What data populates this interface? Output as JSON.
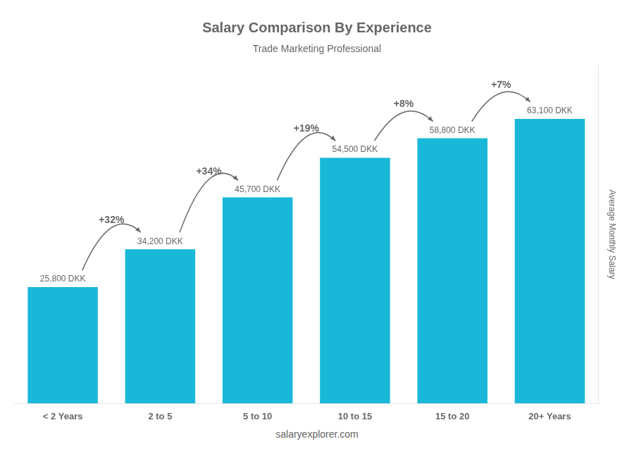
{
  "chart_data": {
    "type": "bar",
    "title": "Salary Comparison By Experience",
    "subtitle": "Trade Marketing Professional",
    "y_label": "Average Monthly Salary",
    "categories": [
      "< 2 Years",
      "2 to 5",
      "5 to 10",
      "10 to 15",
      "15 to 20",
      "20+ Years"
    ],
    "values": [
      25800,
      34200,
      45700,
      54500,
      58800,
      63100
    ],
    "value_labels": [
      "25,800 DKK",
      "34,200 DKK",
      "45,700 DKK",
      "54,500 DKK",
      "58,800 DKK",
      "63,100 DKK"
    ],
    "data_labels": true,
    "annotations": [
      "+32%",
      "+34%",
      "+19%",
      "+8%",
      "+7%"
    ],
    "footer": "salaryexplorer.com",
    "color": "#1ab8d8",
    "ylim": [
      0,
      75000
    ],
    "grid": false,
    "tick_labels": "x"
  }
}
